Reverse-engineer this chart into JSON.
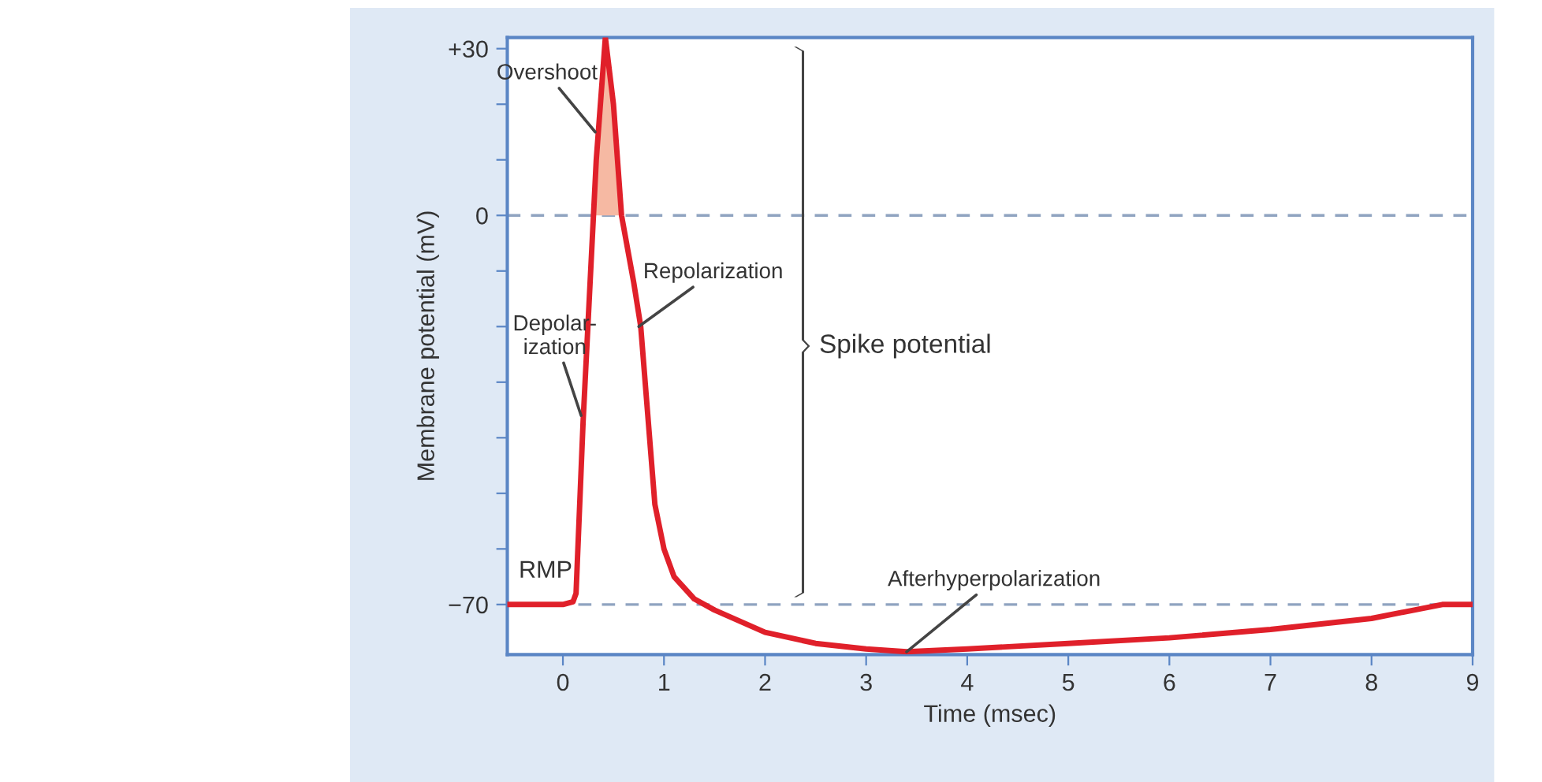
{
  "chart_data": {
    "type": "line",
    "xlabel": "Time (msec)",
    "ylabel": "Membrane potential (mV)",
    "xlim": [
      -0.55,
      9
    ],
    "ylim": [
      -79,
      32
    ],
    "xticks": [
      0,
      1,
      2,
      3,
      4,
      5,
      6,
      7,
      8,
      9
    ],
    "yticks": [
      {
        "value": 30,
        "label": "+30"
      },
      {
        "value": 20,
        "label": null
      },
      {
        "value": 10,
        "label": null
      },
      0,
      {
        "value": -10,
        "label": null
      },
      {
        "value": -20,
        "label": null
      },
      {
        "value": -30,
        "label": null
      },
      {
        "value": -40,
        "label": null
      },
      {
        "value": -50,
        "label": null
      },
      {
        "value": -60,
        "label": null
      },
      {
        "value": -70,
        "label": "−70"
      }
    ],
    "series": [
      {
        "type": "area",
        "color": "#f6b9a3",
        "x": [
          0.3,
          0.33,
          0.42,
          0.5,
          0.58
        ],
        "values": [
          0,
          10,
          32,
          20,
          0
        ]
      },
      {
        "color": "#e0202a",
        "x": [
          -0.55,
          0,
          0.1,
          0.13,
          0.2,
          0.33,
          0.42,
          0.5,
          0.58,
          0.7,
          0.77,
          0.91,
          1.0,
          1.1,
          1.3,
          1.5,
          2,
          2.5,
          3,
          3.4,
          4,
          5,
          6,
          7,
          8,
          8.7,
          9
        ],
        "values": [
          -70,
          -70,
          -69.5,
          -68,
          -37,
          10,
          32,
          20,
          0,
          -12,
          -20,
          -52,
          -60,
          -65,
          -69,
          -71,
          -75,
          -77,
          -78,
          -78.5,
          -78,
          -77,
          -76,
          -74.5,
          -72.5,
          -70,
          -70
        ]
      }
    ],
    "ref_lines": [
      {
        "axis": "y",
        "value": 0,
        "color": "#8fa3c0",
        "line_style": "dashed"
      },
      {
        "axis": "y",
        "value": -70,
        "color": "#8fa3c0",
        "line_style": "dashed"
      }
    ],
    "annotations": [
      {
        "text": "Overshoot",
        "x": 0.32,
        "y": 15
      },
      {
        "text": "Depolar-\nization",
        "x": 0.18,
        "y": -36
      },
      {
        "text": "Repolarization",
        "x": 0.75,
        "y": -20
      },
      {
        "text": "RMP",
        "x": -0.35,
        "y": -70
      },
      "Spike potential",
      {
        "text": "Afterhyperpolarization",
        "x": 3.4,
        "y": -78.5
      }
    ]
  }
}
